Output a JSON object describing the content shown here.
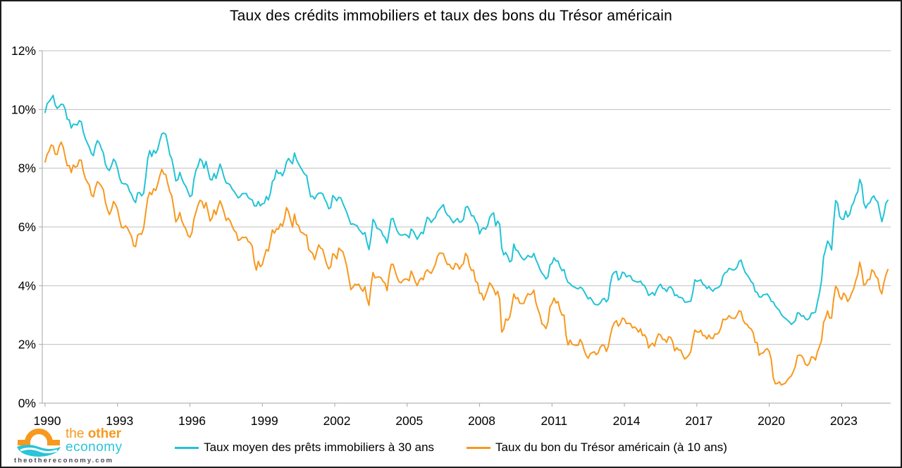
{
  "chart_data": {
    "type": "line",
    "title": "Taux des crédits immobiliers et taux des bons du Trésor américain",
    "x_start_year": 1990,
    "x_months_per_point": 1,
    "xticks": [
      1990,
      1993,
      1996,
      1999,
      2002,
      2005,
      2008,
      2011,
      2014,
      2017,
      2020,
      2023
    ],
    "ylim": [
      0,
      12
    ],
    "yticks": [
      0,
      2,
      4,
      6,
      8,
      10,
      12
    ],
    "ytick_labels": [
      "0%",
      "2%",
      "4%",
      "6%",
      "8%",
      "10%",
      "12%"
    ],
    "grid": true,
    "legend_position": "bottom",
    "colors": {
      "grid": "#BFBFBF",
      "axis": "#A6A6A6",
      "text": "#000000"
    },
    "series": [
      {
        "name": "Taux moyen des prêts immobiliers à 30 ans",
        "color": "#22C3D6",
        "values": [
          9.9,
          10.2,
          10.27,
          10.37,
          10.48,
          10.16,
          10.04,
          10.1,
          10.18,
          10.17,
          10.01,
          9.67,
          9.64,
          9.37,
          9.5,
          9.49,
          9.47,
          9.62,
          9.58,
          9.24,
          9.01,
          8.86,
          8.71,
          8.5,
          8.43,
          8.76,
          8.94,
          8.85,
          8.67,
          8.51,
          8.13,
          7.98,
          7.92,
          8.09,
          8.31,
          8.22,
          7.99,
          7.68,
          7.5,
          7.47,
          7.47,
          7.42,
          7.21,
          7.11,
          6.92,
          6.83,
          7.16,
          7.17,
          7.06,
          7.15,
          7.68,
          8.32,
          8.6,
          8.4,
          8.61,
          8.51,
          8.64,
          8.93,
          9.17,
          9.2,
          9.15,
          8.83,
          8.46,
          8.32,
          7.96,
          7.57,
          7.61,
          7.86,
          7.64,
          7.48,
          7.38,
          7.2,
          7.03,
          7.08,
          7.62,
          7.93,
          8.07,
          8.32,
          8.25,
          8.0,
          8.23,
          7.92,
          7.62,
          7.6,
          7.82,
          7.65,
          7.9,
          8.14,
          7.94,
          7.69,
          7.5,
          7.48,
          7.43,
          7.29,
          7.21,
          7.1,
          6.99,
          7.04,
          7.13,
          7.14,
          7.14,
          7.0,
          6.95,
          6.92,
          6.72,
          6.71,
          6.87,
          6.72,
          6.79,
          6.81,
          7.04,
          6.92,
          7.15,
          7.55,
          7.63,
          7.94,
          7.82,
          7.85,
          7.74,
          7.91,
          8.21,
          8.33,
          8.24,
          8.15,
          8.52,
          8.29,
          8.15,
          8.03,
          7.91,
          7.8,
          7.75,
          7.38,
          7.03,
          7.05,
          6.95,
          7.08,
          7.15,
          7.16,
          7.13,
          6.95,
          6.82,
          6.62,
          6.66,
          7.07,
          7.0,
          6.89,
          7.01,
          6.99,
          6.81,
          6.65,
          6.49,
          6.29,
          6.09,
          6.11,
          6.07,
          6.05,
          5.92,
          5.84,
          5.75,
          5.81,
          5.48,
          5.23,
          5.63,
          6.26,
          6.15,
          5.95,
          5.93,
          5.88,
          5.71,
          5.64,
          5.45,
          5.83,
          6.27,
          6.29,
          6.06,
          5.87,
          5.75,
          5.72,
          5.73,
          5.75,
          5.71,
          5.63,
          5.93,
          5.86,
          5.72,
          5.58,
          5.7,
          5.82,
          5.77,
          6.07,
          6.33,
          6.27,
          6.15,
          6.25,
          6.32,
          6.51,
          6.6,
          6.68,
          6.76,
          6.52,
          6.4,
          6.36,
          6.24,
          6.14,
          6.22,
          6.29,
          6.16,
          6.18,
          6.26,
          6.66,
          6.7,
          6.57,
          6.38,
          6.38,
          6.21,
          6.1,
          5.76,
          5.92,
          5.97,
          5.92,
          6.04,
          6.32,
          6.43,
          6.48,
          6.04,
          6.2,
          6.09,
          5.29,
          5.05,
          5.13,
          5.0,
          4.81,
          4.86,
          5.42,
          5.22,
          5.19,
          5.06,
          4.95,
          4.88,
          4.93,
          5.03,
          4.99,
          4.97,
          5.1,
          4.89,
          4.74,
          4.56,
          4.43,
          4.35,
          4.23,
          4.3,
          4.71,
          4.76,
          4.95,
          4.84,
          4.84,
          4.64,
          4.51,
          4.55,
          4.27,
          4.11,
          4.07,
          3.99,
          3.96,
          3.92,
          3.89,
          3.95,
          3.91,
          3.8,
          3.68,
          3.55,
          3.6,
          3.5,
          3.38,
          3.35,
          3.35,
          3.41,
          3.53,
          3.57,
          3.45,
          3.54,
          4.07,
          4.37,
          4.46,
          4.49,
          4.19,
          4.26,
          4.46,
          4.43,
          4.3,
          4.34,
          4.34,
          4.19,
          4.16,
          4.13,
          4.12,
          4.16,
          4.04,
          4.0,
          3.86,
          3.67,
          3.71,
          3.77,
          3.67,
          3.84,
          3.98,
          4.05,
          3.91,
          3.89,
          3.8,
          3.94,
          3.96,
          3.87,
          3.66,
          3.69,
          3.61,
          3.6,
          3.57,
          3.44,
          3.44,
          3.46,
          3.47,
          3.77,
          4.2,
          4.15,
          4.17,
          4.2,
          4.05,
          4.01,
          3.9,
          3.97,
          3.88,
          3.81,
          3.9,
          3.92,
          3.95,
          4.03,
          4.33,
          4.44,
          4.47,
          4.59,
          4.57,
          4.53,
          4.55,
          4.63,
          4.83,
          4.87,
          4.64,
          4.46,
          4.37,
          4.27,
          4.14,
          4.07,
          3.8,
          3.77,
          3.62,
          3.61,
          3.69,
          3.7,
          3.72,
          3.62,
          3.47,
          3.45,
          3.31,
          3.23,
          3.16,
          3.02,
          2.94,
          2.89,
          2.83,
          2.77,
          2.68,
          2.74,
          2.81,
          3.08,
          3.06,
          2.96,
          2.98,
          2.87,
          2.84,
          2.9,
          3.07,
          3.07,
          3.1,
          3.45,
          3.76,
          4.17,
          4.98,
          5.23,
          5.52,
          5.41,
          5.22,
          6.11,
          6.9,
          6.81,
          6.36,
          6.27,
          6.26,
          6.54,
          6.34,
          6.43,
          6.71,
          6.84,
          7.07,
          7.2,
          7.62,
          7.44,
          6.82,
          6.64,
          6.78,
          6.82,
          6.99,
          7.06,
          6.92,
          6.85,
          6.5,
          6.18,
          6.43,
          6.81,
          6.91
        ]
      },
      {
        "name": "Taux du bon du Trésor américain (à 10 ans)",
        "color": "#F8981D",
        "values": [
          8.21,
          8.47,
          8.59,
          8.79,
          8.76,
          8.48,
          8.47,
          8.75,
          8.89,
          8.72,
          8.39,
          8.08,
          8.09,
          7.85,
          8.11,
          8.04,
          8.07,
          8.28,
          8.27,
          7.9,
          7.65,
          7.53,
          7.42,
          7.09,
          7.03,
          7.34,
          7.54,
          7.48,
          7.39,
          7.26,
          6.84,
          6.59,
          6.42,
          6.59,
          6.87,
          6.77,
          6.6,
          6.26,
          5.98,
          5.97,
          6.04,
          5.96,
          5.81,
          5.68,
          5.36,
          5.33,
          5.72,
          5.77,
          5.75,
          5.97,
          6.48,
          6.97,
          7.18,
          7.1,
          7.3,
          7.24,
          7.46,
          7.74,
          7.96,
          7.81,
          7.78,
          7.47,
          7.2,
          7.06,
          6.63,
          6.17,
          6.28,
          6.49,
          6.2,
          6.04,
          5.93,
          5.71,
          5.65,
          5.81,
          6.27,
          6.51,
          6.74,
          6.91,
          6.87,
          6.64,
          6.83,
          6.53,
          6.2,
          6.3,
          6.58,
          6.42,
          6.69,
          6.89,
          6.71,
          6.49,
          6.22,
          6.3,
          6.21,
          6.03,
          5.88,
          5.81,
          5.54,
          5.57,
          5.65,
          5.64,
          5.65,
          5.5,
          5.46,
          5.34,
          4.81,
          4.53,
          4.83,
          4.65,
          4.72,
          5.0,
          5.23,
          5.18,
          5.54,
          5.9,
          5.79,
          5.94,
          5.92,
          6.11,
          6.03,
          6.28,
          6.66,
          6.52,
          6.26,
          5.99,
          6.44,
          6.1,
          6.05,
          5.83,
          5.8,
          5.74,
          5.72,
          5.24,
          5.16,
          5.1,
          4.89,
          5.14,
          5.39,
          5.28,
          5.24,
          4.97,
          4.73,
          4.57,
          4.65,
          5.09,
          5.04,
          4.91,
          5.28,
          5.21,
          5.16,
          4.93,
          4.65,
          4.26,
          3.87,
          3.94,
          4.05,
          4.03,
          4.05,
          3.9,
          3.81,
          3.96,
          3.57,
          3.33,
          3.98,
          4.45,
          4.27,
          4.29,
          4.3,
          4.27,
          4.15,
          4.08,
          3.83,
          4.35,
          4.72,
          4.73,
          4.5,
          4.28,
          4.13,
          4.1,
          4.19,
          4.23,
          4.22,
          4.17,
          4.5,
          4.34,
          4.14,
          4.0,
          4.18,
          4.26,
          4.2,
          4.46,
          4.54,
          4.47,
          4.42,
          4.57,
          4.72,
          4.99,
          5.11,
          5.11,
          5.09,
          4.88,
          4.72,
          4.73,
          4.6,
          4.56,
          4.76,
          4.72,
          4.56,
          4.69,
          4.75,
          5.1,
          5.0,
          4.67,
          4.52,
          4.53,
          4.15,
          4.1,
          3.74,
          3.74,
          3.51,
          3.68,
          3.88,
          4.1,
          4.01,
          3.89,
          3.69,
          3.81,
          3.53,
          2.42,
          2.52,
          2.87,
          2.82,
          2.93,
          3.29,
          3.72,
          3.56,
          3.59,
          3.4,
          3.39,
          3.4,
          3.59,
          3.73,
          3.69,
          3.73,
          3.85,
          3.42,
          3.2,
          3.01,
          2.7,
          2.65,
          2.54,
          2.76,
          3.29,
          3.39,
          3.58,
          3.41,
          3.46,
          3.17,
          3.0,
          3.0,
          2.3,
          1.98,
          2.15,
          2.01,
          1.98,
          1.97,
          1.97,
          2.17,
          2.05,
          1.8,
          1.62,
          1.53,
          1.68,
          1.72,
          1.75,
          1.65,
          1.72,
          1.91,
          1.98,
          1.96,
          1.76,
          1.93,
          2.3,
          2.58,
          2.74,
          2.81,
          2.62,
          2.72,
          2.9,
          2.86,
          2.71,
          2.72,
          2.71,
          2.56,
          2.6,
          2.54,
          2.42,
          2.53,
          2.3,
          2.33,
          2.21,
          1.88,
          1.98,
          2.04,
          1.94,
          2.2,
          2.36,
          2.32,
          2.17,
          2.17,
          2.07,
          2.26,
          2.24,
          2.09,
          1.78,
          1.89,
          1.81,
          1.81,
          1.64,
          1.5,
          1.56,
          1.63,
          1.76,
          2.14,
          2.49,
          2.43,
          2.42,
          2.48,
          2.3,
          2.3,
          2.19,
          2.32,
          2.21,
          2.2,
          2.36,
          2.35,
          2.4,
          2.58,
          2.86,
          2.84,
          2.87,
          2.98,
          2.91,
          2.89,
          2.89,
          3.0,
          3.15,
          3.12,
          2.83,
          2.71,
          2.68,
          2.57,
          2.53,
          2.4,
          2.07,
          2.06,
          1.63,
          1.7,
          1.71,
          1.81,
          1.86,
          1.76,
          1.5,
          0.87,
          0.66,
          0.67,
          0.73,
          0.62,
          0.65,
          0.68,
          0.79,
          0.87,
          0.93,
          1.08,
          1.26,
          1.61,
          1.64,
          1.62,
          1.52,
          1.32,
          1.28,
          1.37,
          1.58,
          1.56,
          1.47,
          1.76,
          1.93,
          2.13,
          2.75,
          2.9,
          3.14,
          2.9,
          2.9,
          3.52,
          3.98,
          3.89,
          3.62,
          3.53,
          3.75,
          3.66,
          3.46,
          3.57,
          3.75,
          3.9,
          4.17,
          4.38,
          4.8,
          4.5,
          4.02,
          4.06,
          4.21,
          4.21,
          4.54,
          4.48,
          4.31,
          4.25,
          3.87,
          3.72,
          4.1,
          4.36,
          4.55
        ]
      }
    ]
  },
  "logo": {
    "word1": "the",
    "word2": "other",
    "word3": "economy",
    "website": "theothereconomy.com",
    "orange": "#F8981D",
    "cyan": "#29C5D8"
  }
}
